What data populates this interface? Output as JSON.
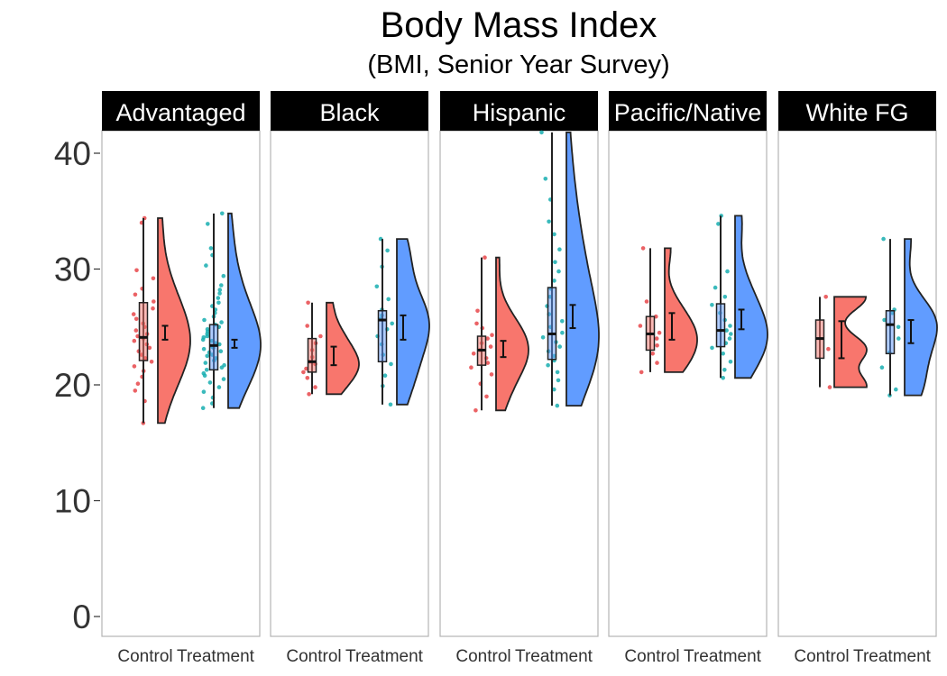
{
  "chart_data": {
    "type": "raincloud",
    "title": "Body Mass Index",
    "subtitle": "(BMI, Senior Year Survey)",
    "xlabel": "",
    "ylabel": "",
    "ylim": [
      0,
      42
    ],
    "yticks": [
      0,
      10,
      20,
      30,
      40
    ],
    "grid": false,
    "legend": "none",
    "categories": [
      "Control",
      "Treatment"
    ],
    "colors": {
      "Control": "#F8766D",
      "Treatment": "#619CFF",
      "points_control": "#E8474A",
      "points_treatment": "#17AEB0"
    },
    "panels": [
      {
        "name": "Advantaged",
        "groups": [
          {
            "category": "Control",
            "min": 16.7,
            "q1": 22.1,
            "median": 24.1,
            "q3": 27.1,
            "max": 34.4,
            "mean": 24.5,
            "se_low": 23.9,
            "se_high": 25.1,
            "density_peak": 24.0,
            "points": [
              16.7,
              18.6,
              19.5,
              20.1,
              20.7,
              21.2,
              21.6,
              22.0,
              22.3,
              22.6,
              22.9,
              23.2,
              23.5,
              23.8,
              24.0,
              24.2,
              24.4,
              24.7,
              25.0,
              25.3,
              25.7,
              26.1,
              26.6,
              27.2,
              27.8,
              28.3,
              29.2,
              29.9,
              34.0,
              34.4
            ]
          },
          {
            "category": "Treatment",
            "min": 18.0,
            "q1": 21.3,
            "median": 23.4,
            "q3": 25.2,
            "max": 34.8,
            "mean": 23.5,
            "se_low": 23.2,
            "se_high": 23.9,
            "density_peak": 23.5,
            "points": [
              18.0,
              18.4,
              18.9,
              19.4,
              19.8,
              20.2,
              20.5,
              20.8,
              21.0,
              21.3,
              21.5,
              21.7,
              21.9,
              22.1,
              22.3,
              22.5,
              22.6,
              22.8,
              22.9,
              23.1,
              23.2,
              23.3,
              23.5,
              23.6,
              23.8,
              23.9,
              24.1,
              24.2,
              24.4,
              24.6,
              24.8,
              25.0,
              25.2,
              25.4,
              25.6,
              25.9,
              26.2,
              26.5,
              26.8,
              27.1,
              27.5,
              27.9,
              28.2,
              28.6,
              29.4,
              30.3,
              31.2,
              31.8,
              33.9,
              34.8
            ]
          }
        ]
      },
      {
        "name": "Black",
        "groups": [
          {
            "category": "Control",
            "min": 19.2,
            "q1": 21.1,
            "median": 22.0,
            "q3": 24.0,
            "max": 27.1,
            "mean": 22.5,
            "se_low": 21.7,
            "se_high": 23.3,
            "density_peak": 22.0,
            "points": [
              19.2,
              19.8,
              20.6,
              21.1,
              21.4,
              21.8,
              22.0,
              22.4,
              23.0,
              23.6,
              24.2,
              25.1,
              27.1
            ]
          },
          {
            "category": "Treatment",
            "min": 18.3,
            "q1": 22.0,
            "median": 25.6,
            "q3": 26.4,
            "max": 32.6,
            "mean": 24.9,
            "se_low": 23.9,
            "se_high": 26.0,
            "density_peak": 25.5,
            "points": [
              18.3,
              19.9,
              20.8,
              21.8,
              22.6,
              23.5,
              24.2,
              24.8,
              25.3,
              25.7,
              26.0,
              26.5,
              27.4,
              28.5,
              30.2,
              31.6,
              32.6
            ]
          }
        ]
      },
      {
        "name": "Hispanic",
        "groups": [
          {
            "category": "Control",
            "min": 17.8,
            "q1": 21.7,
            "median": 23.0,
            "q3": 24.2,
            "max": 31.0,
            "mean": 23.1,
            "se_low": 22.4,
            "se_high": 23.8,
            "density_peak": 23.0,
            "points": [
              17.8,
              19.0,
              20.1,
              20.9,
              21.5,
              21.9,
              22.3,
              22.7,
              23.0,
              23.3,
              23.6,
              24.0,
              24.3,
              24.9,
              25.3,
              26.4,
              31.0
            ]
          },
          {
            "category": "Treatment",
            "min": 18.2,
            "q1": 22.2,
            "median": 24.4,
            "q3": 28.4,
            "max": 41.8,
            "mean": 25.9,
            "se_low": 24.9,
            "se_high": 26.9,
            "density_peak": 23.5,
            "points": [
              18.2,
              19.6,
              20.4,
              21.1,
              21.7,
              22.1,
              22.5,
              22.9,
              23.3,
              23.7,
              24.1,
              24.5,
              25.0,
              25.5,
              26.1,
              26.8,
              27.6,
              28.3,
              29.0,
              29.8,
              30.6,
              31.7,
              33.0,
              34.1,
              36.0,
              37.8,
              41.8
            ]
          }
        ]
      },
      {
        "name": "Pacific/Native",
        "groups": [
          {
            "category": "Control",
            "min": 21.1,
            "q1": 23.0,
            "median": 24.4,
            "q3": 25.9,
            "max": 31.8,
            "mean": 25.0,
            "se_low": 23.9,
            "se_high": 26.2,
            "density_peak": 24.5,
            "points": [
              21.1,
              21.9,
              22.7,
              23.4,
              24.0,
              24.5,
              25.1,
              25.9,
              27.2,
              31.8
            ]
          },
          {
            "category": "Treatment",
            "min": 20.6,
            "q1": 23.3,
            "median": 24.7,
            "q3": 27.0,
            "max": 34.6,
            "mean": 25.6,
            "se_low": 24.8,
            "se_high": 26.5,
            "density_peak": 24.5,
            "points": [
              20.6,
              21.3,
              22.0,
              22.7,
              23.2,
              23.6,
              24.0,
              24.4,
              24.7,
              25.1,
              25.6,
              26.2,
              26.9,
              27.6,
              28.4,
              29.8,
              33.9,
              34.6
            ]
          }
        ]
      },
      {
        "name": "White FG",
        "groups": [
          {
            "category": "Control",
            "min": 19.8,
            "q1": 22.3,
            "median": 24.0,
            "q3": 25.6,
            "max": 27.6,
            "mean": 23.9,
            "se_low": 22.3,
            "se_high": 25.5,
            "density_peak": 24.0,
            "points": [
              19.8,
              23.1,
              27.6
            ]
          },
          {
            "category": "Treatment",
            "min": 19.1,
            "q1": 22.7,
            "median": 25.2,
            "q3": 26.4,
            "max": 32.6,
            "mean": 24.6,
            "se_low": 23.6,
            "se_high": 25.6,
            "density_peak": 25.5,
            "points": [
              19.1,
              19.6,
              21.5,
              22.8,
              24.0,
              25.0,
              25.6,
              26.2,
              26.5,
              32.6
            ]
          }
        ]
      }
    ]
  }
}
